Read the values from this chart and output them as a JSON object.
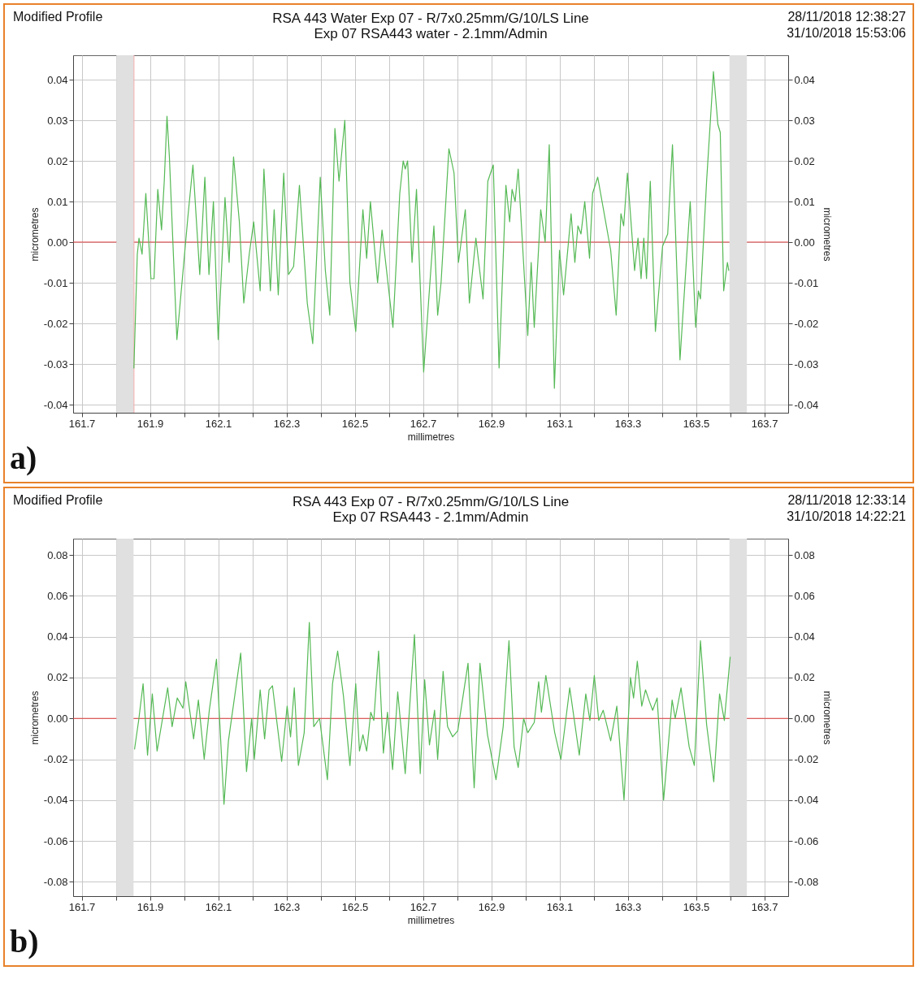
{
  "chart_data": [
    {
      "type": "line",
      "title": "RSA 443 Water Exp 07 - R/7x0.25mm/G/10/LS Line",
      "subtitle": "Exp 07 RSA443 water - 2.1mm/Admin",
      "xlabel": "millimetres",
      "ylabel": "micrometres",
      "y2label": "micrometres",
      "annotations": [
        "Modified Profile",
        "28/11/2018 12:38:27",
        "31/10/2018 15:53:06",
        "a)"
      ],
      "xlim": [
        161.675,
        163.77
      ],
      "xticks": [
        161.7,
        {
          "value": 161.8,
          "label": null
        },
        161.9,
        {
          "value": 162.0,
          "label": null
        },
        162.1,
        {
          "value": 162.2,
          "label": null
        },
        162.3,
        {
          "value": 162.4,
          "label": null
        },
        162.5,
        {
          "value": 162.6,
          "label": null
        },
        162.7,
        {
          "value": 162.8,
          "label": null
        },
        162.9,
        {
          "value": 163.0,
          "label": null
        },
        163.1,
        {
          "value": 163.2,
          "label": null
        },
        163.3,
        {
          "value": 163.4,
          "label": null
        },
        163.5,
        {
          "value": 163.6,
          "label": null
        },
        163.7
      ],
      "ylim": [
        -0.042,
        0.046
      ],
      "yticks": [
        -0.04,
        -0.03,
        -0.02,
        -0.01,
        {
          "value": 0,
          "label": "0.00"
        },
        0.01,
        0.02,
        0.03,
        0.04
      ],
      "y2lim": [
        -0.042,
        0.046
      ],
      "y2ticks": [
        -0.04,
        -0.03,
        -0.02,
        -0.01,
        {
          "value": 0,
          "label": "0.00"
        },
        0.01,
        0.02,
        0.03,
        0.04
      ],
      "grid": true,
      "bands": [
        {
          "axis": "x",
          "from": 161.802,
          "to": 161.852,
          "color": "#e0e0e0"
        },
        {
          "axis": "x",
          "from": 163.598,
          "to": 163.649,
          "color": "#e0e0e0"
        }
      ],
      "ref_lines": [
        {
          "axis": "y",
          "value": 0,
          "color": "#e03c3c"
        },
        {
          "axis": "x",
          "value": 161.853,
          "color": "#f4a4a4"
        }
      ],
      "series": [
        {
          "color": "#55b955",
          "x": [
            161.853,
            161.863,
            161.868,
            161.877,
            161.888,
            161.903,
            161.912,
            161.923,
            161.934,
            161.942,
            161.95,
            161.957,
            161.979,
            161.995,
            162.011,
            162.026,
            162.046,
            162.061,
            162.073,
            162.086,
            162.1,
            162.12,
            162.132,
            162.145,
            162.162,
            162.175,
            162.191,
            162.204,
            162.223,
            162.234,
            162.253,
            162.264,
            162.276,
            162.292,
            162.306,
            162.321,
            162.338,
            162.361,
            162.377,
            162.399,
            162.414,
            162.427,
            162.442,
            162.454,
            162.471,
            162.486,
            162.503,
            162.524,
            162.535,
            162.546,
            162.567,
            162.58,
            162.612,
            162.632,
            162.642,
            162.648,
            162.655,
            162.668,
            162.681,
            162.702,
            162.732,
            162.743,
            162.753,
            162.776,
            162.791,
            162.804,
            162.824,
            162.836,
            162.855,
            162.876,
            162.89,
            162.906,
            162.923,
            162.943,
            162.954,
            162.961,
            162.97,
            162.979,
            163.007,
            163.017,
            163.026,
            163.045,
            163.058,
            163.07,
            163.085,
            163.1,
            163.112,
            163.134,
            163.145,
            163.154,
            163.163,
            163.174,
            163.188,
            163.197,
            163.212,
            163.25,
            163.266,
            163.28,
            163.288,
            163.299,
            163.32,
            163.33,
            163.339,
            163.347,
            163.355,
            163.366,
            163.381,
            163.402,
            163.417,
            163.431,
            163.453,
            163.483,
            163.499,
            163.507,
            163.513,
            163.531,
            163.551,
            163.564,
            163.571,
            163.581,
            163.592,
            163.596
          ],
          "values": [
            -0.031,
            -0.003,
            0.001,
            -0.003,
            0.012,
            -0.009,
            -0.009,
            0.013,
            0.003,
            0.015,
            0.031,
            0.021,
            -0.024,
            -0.009,
            0.006,
            0.019,
            -0.008,
            0.016,
            -0.008,
            0.01,
            -0.024,
            0.011,
            -0.005,
            0.021,
            0.005,
            -0.015,
            -0.003,
            0.005,
            -0.012,
            0.018,
            -0.012,
            0.008,
            -0.013,
            0.017,
            -0.008,
            -0.006,
            0.014,
            -0.015,
            -0.025,
            0.016,
            -0.007,
            -0.018,
            0.028,
            0.015,
            0.03,
            -0.01,
            -0.022,
            0.008,
            -0.004,
            0.01,
            -0.01,
            0.003,
            -0.021,
            0.012,
            0.02,
            0.018,
            0.02,
            -0.005,
            0.013,
            -0.032,
            0.004,
            -0.018,
            -0.01,
            0.023,
            0.017,
            -0.005,
            0.008,
            -0.015,
            0.001,
            -0.014,
            0.015,
            0.019,
            -0.031,
            0.014,
            0.005,
            0.013,
            0.01,
            0.018,
            -0.023,
            -0.005,
            -0.021,
            0.008,
            0,
            0.024,
            -0.036,
            -0.002,
            -0.013,
            0.007,
            -0.005,
            0.004,
            0.002,
            0.01,
            -0.004,
            0.012,
            0.016,
            -0.002,
            -0.018,
            0.007,
            0.004,
            0.017,
            -0.007,
            0.001,
            -0.009,
            0.001,
            -0.009,
            0.015,
            -0.022,
            -0.001,
            0.002,
            0.024,
            -0.029,
            0.01,
            -0.021,
            -0.012,
            -0.014,
            0.015,
            0.042,
            0.029,
            0.027,
            -0.012,
            -0.005,
            -0.007
          ]
        }
      ]
    },
    {
      "type": "line",
      "title": "RSA 443 Exp 07 - R/7x0.25mm/G/10/LS Line",
      "subtitle": "Exp 07 RSA443 - 2.1mm/Admin",
      "xlabel": "millimetres",
      "ylabel": "micrometres",
      "y2label": "micrometres",
      "annotations": [
        "Modified Profile",
        "28/11/2018 12:33:14",
        "31/10/2018 14:22:21",
        "b)"
      ],
      "xlim": [
        161.675,
        163.77
      ],
      "xticks": [
        161.7,
        {
          "value": 161.8,
          "label": null
        },
        161.9,
        {
          "value": 162.0,
          "label": null
        },
        162.1,
        {
          "value": 162.2,
          "label": null
        },
        162.3,
        {
          "value": 162.4,
          "label": null
        },
        162.5,
        {
          "value": 162.6,
          "label": null
        },
        162.7,
        {
          "value": 162.8,
          "label": null
        },
        162.9,
        {
          "value": 163.0,
          "label": null
        },
        163.1,
        {
          "value": 163.2,
          "label": null
        },
        163.3,
        {
          "value": 163.4,
          "label": null
        },
        163.5,
        {
          "value": 163.6,
          "label": null
        },
        163.7
      ],
      "ylim": [
        -0.087,
        0.088
      ],
      "yticks": [
        -0.08,
        -0.06,
        -0.04,
        -0.02,
        {
          "value": 0,
          "label": "0.00"
        },
        0.02,
        0.04,
        0.06,
        0.08
      ],
      "y2lim": [
        -0.087,
        0.088
      ],
      "y2ticks": [
        -0.08,
        -0.06,
        -0.04,
        -0.02,
        {
          "value": 0,
          "label": "0.00"
        },
        0.02,
        0.04,
        0.06,
        0.08
      ],
      "grid": true,
      "bands": [
        {
          "axis": "x",
          "from": 161.802,
          "to": 161.852,
          "color": "#e0e0e0"
        },
        {
          "axis": "x",
          "from": 163.598,
          "to": 163.649,
          "color": "#e0e0e0"
        }
      ],
      "ref_lines": [
        {
          "axis": "y",
          "value": 0,
          "color": "#e03c3c"
        }
      ],
      "series": [
        {
          "color": "#55b955",
          "x": [
            161.855,
            161.867,
            161.88,
            161.893,
            161.907,
            161.921,
            161.952,
            161.965,
            161.98,
            161.997,
            162.005,
            162.028,
            162.042,
            162.059,
            162.074,
            162.095,
            162.117,
            162.13,
            162.166,
            162.183,
            162.198,
            162.206,
            162.223,
            162.236,
            162.249,
            162.259,
            162.286,
            162.302,
            162.312,
            162.323,
            162.335,
            162.352,
            162.367,
            162.38,
            162.397,
            162.42,
            162.435,
            162.45,
            162.467,
            162.486,
            162.503,
            162.514,
            162.524,
            162.535,
            162.547,
            162.556,
            162.57,
            162.584,
            162.596,
            162.611,
            162.626,
            162.648,
            162.675,
            162.692,
            162.705,
            162.719,
            162.734,
            162.743,
            162.759,
            162.772,
            162.787,
            162.802,
            162.832,
            162.85,
            162.867,
            162.889,
            162.914,
            162.935,
            162.952,
            162.967,
            162.979,
            162.995,
            163.007,
            163.026,
            163.039,
            163.047,
            163.06,
            163.086,
            163.104,
            163.13,
            163.158,
            163.177,
            163.189,
            163.202,
            163.215,
            163.228,
            163.25,
            163.268,
            163.289,
            163.308,
            163.317,
            163.328,
            163.341,
            163.352,
            163.364,
            163.373,
            163.386,
            163.405,
            163.43,
            163.439,
            163.456,
            163.48,
            163.495,
            163.513,
            163.531,
            163.552,
            163.569,
            163.583,
            163.6
          ],
          "values": [
            -0.015,
            -0.001,
            0.017,
            -0.018,
            0.012,
            -0.016,
            0.015,
            -0.004,
            0.01,
            0.005,
            0.018,
            -0.01,
            0.009,
            -0.02,
            0.004,
            0.029,
            -0.042,
            -0.011,
            0.032,
            -0.026,
            0,
            -0.02,
            0.014,
            -0.01,
            0.014,
            0.016,
            -0.021,
            0.006,
            -0.009,
            0.015,
            -0.023,
            -0.007,
            0.047,
            -0.004,
            0,
            -0.03,
            0.017,
            0.033,
            0.011,
            -0.023,
            0.017,
            -0.016,
            -0.008,
            -0.016,
            0.003,
            -0.001,
            0.033,
            -0.017,
            0.003,
            -0.025,
            0.013,
            -0.027,
            0.041,
            -0.027,
            0.019,
            -0.013,
            0.004,
            -0.02,
            0.023,
            -0.004,
            -0.009,
            -0.006,
            0.027,
            -0.034,
            0.027,
            -0.008,
            -0.03,
            -0.004,
            0.038,
            -0.014,
            -0.024,
            0,
            -0.007,
            -0.002,
            0.018,
            0.003,
            0.021,
            -0.007,
            -0.02,
            0.015,
            -0.018,
            0.012,
            -0.001,
            0.021,
            -0.001,
            0.004,
            -0.011,
            0.006,
            -0.04,
            0.02,
            0.01,
            0.028,
            0.006,
            0.014,
            0.008,
            0.004,
            0.01,
            -0.04,
            0.009,
            0,
            0.015,
            -0.014,
            -0.023,
            0.038,
            -0.003,
            -0.031,
            0.012,
            -0.001,
            0.03
          ]
        }
      ]
    }
  ]
}
